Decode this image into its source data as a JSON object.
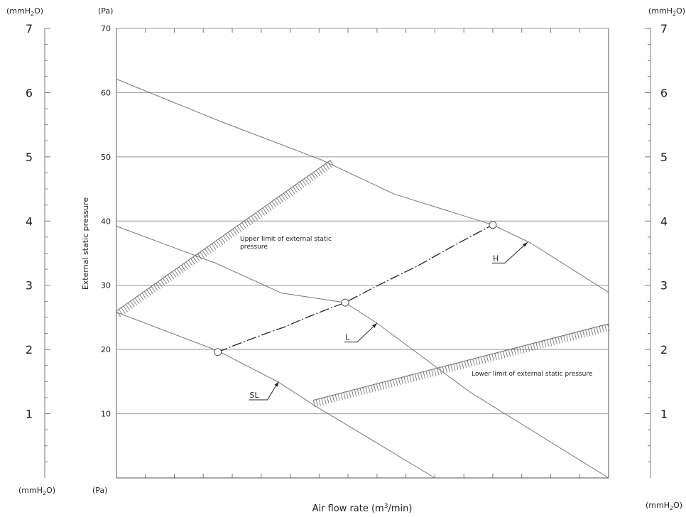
{
  "chart_data": {
    "type": "line",
    "xlabel_main": "Air flow rate (m",
    "xlabel_sup": "3",
    "xlabel_tail": "/min)",
    "ylabel": "External static pressure",
    "y_unit_pa": "(Pa)",
    "y_unit_mm": {
      "pre": "(mmH",
      "sub": "2",
      "post": "O)"
    },
    "ylim": [
      0,
      70
    ],
    "xlim": [
      0,
      17
    ],
    "x_minor_tick_count": 16,
    "y_ticks_pa": [
      "10",
      "20",
      "30",
      "40",
      "50",
      "60",
      "70"
    ],
    "y_ticks_mm": [
      "1",
      "2",
      "3",
      "4",
      "5",
      "6",
      "7"
    ],
    "grid": true,
    "series": [
      {
        "name": "H",
        "points": [
          [
            0,
            62.1
          ],
          [
            3.6,
            55.5
          ],
          [
            7.1,
            49.5
          ],
          [
            9.6,
            44.2
          ],
          [
            13.0,
            39.4
          ],
          [
            14.3,
            36.6
          ],
          [
            17.0,
            28.9
          ]
        ]
      },
      {
        "name": "L",
        "points": [
          [
            0,
            39.2
          ],
          [
            3.4,
            33.5
          ],
          [
            5.7,
            28.8
          ],
          [
            7.9,
            27.3
          ],
          [
            9.0,
            24.1
          ],
          [
            12.2,
            13.4
          ],
          [
            17.0,
            0
          ]
        ]
      },
      {
        "name": "SL",
        "points": [
          [
            0,
            25.8
          ],
          [
            3.5,
            19.8
          ],
          [
            5.6,
            14.9
          ],
          [
            6.9,
            11.1
          ],
          [
            8.2,
            7.6
          ],
          [
            11.0,
            0
          ]
        ]
      }
    ],
    "operating_curve": {
      "points": [
        [
          3.5,
          19.6
        ],
        [
          5.8,
          23.5
        ],
        [
          7.9,
          27.3
        ],
        [
          10.4,
          33.0
        ],
        [
          13.0,
          39.4
        ]
      ]
    },
    "operating_points": [
      [
        3.5,
        19.6
      ],
      [
        7.9,
        27.3
      ],
      [
        13.0,
        39.4
      ]
    ],
    "upper_limit": {
      "label_line1": "Upper limit of external static",
      "label_line2": "pressure",
      "from": [
        0,
        26.0
      ],
      "to": [
        7.4,
        49.5
      ]
    },
    "lower_limit": {
      "label": "Lower limit of external static pressure",
      "from": [
        6.8,
        12.1
      ],
      "to": [
        17.0,
        24.0
      ]
    },
    "curve_labels": [
      {
        "text": "H",
        "at": [
          13.0,
          33.8
        ],
        "arrow_to": [
          14.2,
          36.7
        ]
      },
      {
        "text": "L",
        "at": [
          7.9,
          21.5
        ],
        "arrow_to": [
          9.0,
          24.1
        ]
      },
      {
        "text": "SL",
        "at": [
          4.6,
          12.5
        ],
        "arrow_to": [
          5.6,
          15.0
        ]
      }
    ]
  }
}
